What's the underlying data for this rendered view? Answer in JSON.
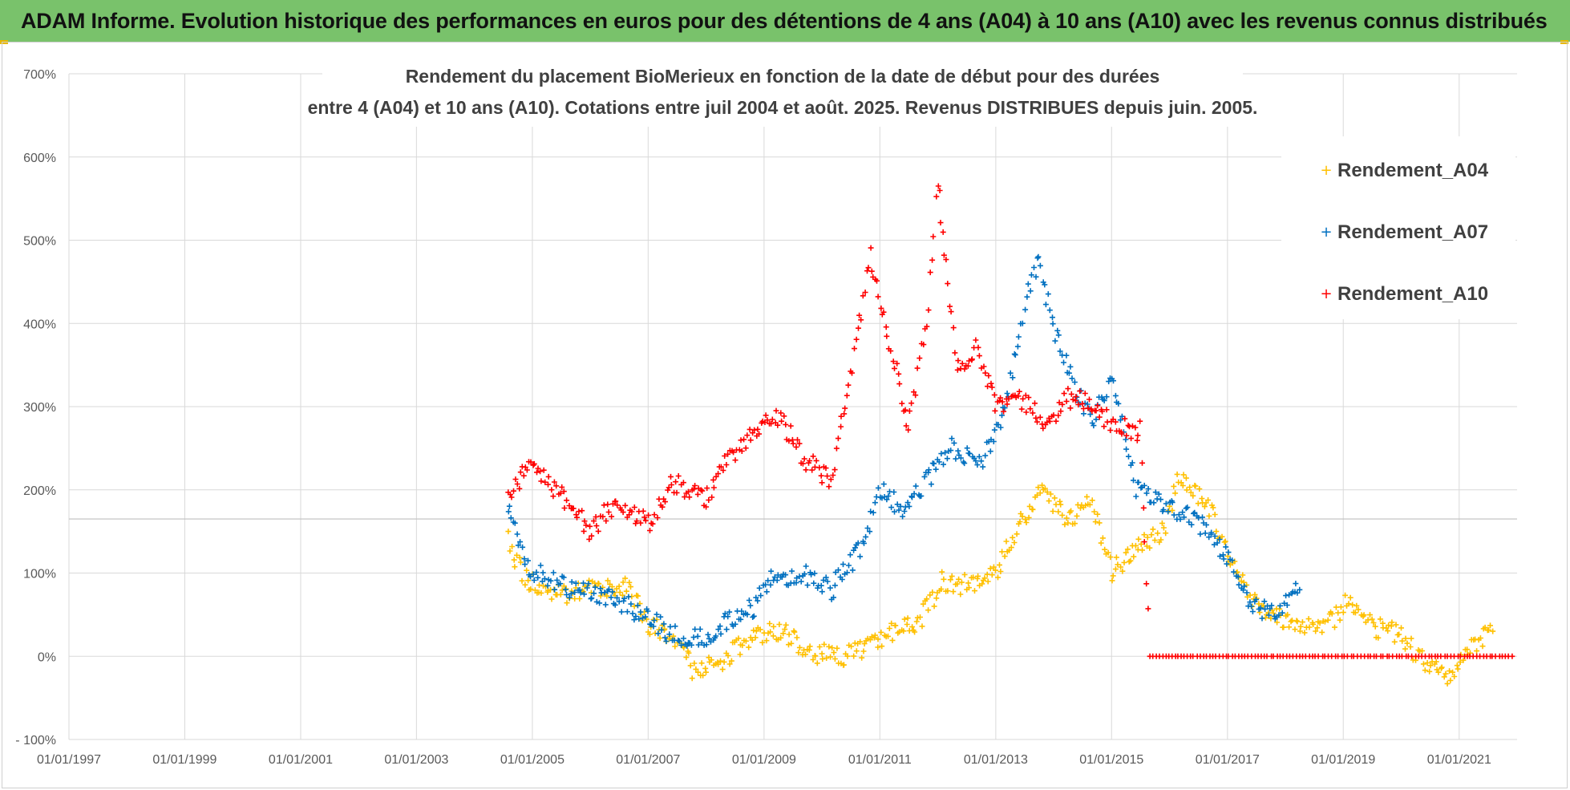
{
  "banner": {
    "title": "ADAM Informe. Evolution historique des performances en euros pour des détentions de 4 ans (A04) à 10 ans (A10) avec les revenus connus distribués",
    "background": "#79c26b"
  },
  "chart_data": {
    "type": "scatter",
    "title_line1": "Rendement du placement BioMerieux en fonction de la date de début pour des durées",
    "title_line2": "entre 4 (A04) et 10 ans (A10). Cotations entre juil 2004 et août. 2025. Revenus DISTRIBUES depuis juin. 2005.",
    "xlabel": "",
    "ylabel": "",
    "x_tick_labels": [
      "01/01/1997",
      "01/01/1999",
      "01/01/2001",
      "01/01/2003",
      "01/01/2005",
      "01/01/2007",
      "01/01/2009",
      "01/01/2011",
      "01/01/2013",
      "01/01/2015",
      "01/01/2017",
      "01/01/2019",
      "01/01/2021"
    ],
    "x_range": [
      "1997-01-01",
      "2022-01-01"
    ],
    "y_tick_labels": [
      "- 100%",
      "0%",
      "100%",
      "200%",
      "300%",
      "400%",
      "500%",
      "600%",
      "700%"
    ],
    "ylim": [
      -100,
      700
    ],
    "grid": true,
    "legend_position": "top-right",
    "marker": "+",
    "series": [
      {
        "name": "Rendement_A04",
        "color": "#ffc000",
        "points": [
          [
            "2004-08-01",
            145
          ],
          [
            "2004-11-01",
            95
          ],
          [
            "2005-03-01",
            80
          ],
          [
            "2005-09-01",
            72
          ],
          [
            "2006-03-01",
            85
          ],
          [
            "2006-09-01",
            82
          ],
          [
            "2007-01-01",
            40
          ],
          [
            "2007-06-01",
            20
          ],
          [
            "2007-11-01",
            -20
          ],
          [
            "2008-04-01",
            -5
          ],
          [
            "2008-09-01",
            15
          ],
          [
            "2009-01-01",
            30
          ],
          [
            "2009-06-01",
            25
          ],
          [
            "2009-11-01",
            5
          ],
          [
            "2010-05-01",
            0
          ],
          [
            "2010-11-01",
            10
          ],
          [
            "2011-03-01",
            30
          ],
          [
            "2011-09-01",
            40
          ],
          [
            "2012-02-01",
            90
          ],
          [
            "2012-08-01",
            85
          ],
          [
            "2013-01-01",
            100
          ],
          [
            "2013-06-01",
            160
          ],
          [
            "2013-11-01",
            200
          ],
          [
            "2014-04-01",
            160
          ],
          [
            "2014-09-01",
            185
          ],
          [
            "2015-01-01",
            100
          ],
          [
            "2015-06-01",
            130
          ],
          [
            "2015-12-01",
            150
          ],
          [
            "2016-03-01",
            220
          ],
          [
            "2016-09-01",
            180
          ],
          [
            "2017-01-01",
            130
          ],
          [
            "2017-06-01",
            70
          ],
          [
            "2017-11-01",
            50
          ],
          [
            "2018-04-01",
            40
          ],
          [
            "2018-09-01",
            30
          ],
          [
            "2019-02-01",
            70
          ],
          [
            "2019-08-01",
            35
          ],
          [
            "2020-01-01",
            25
          ],
          [
            "2020-06-01",
            -10
          ],
          [
            "2020-11-01",
            -25
          ],
          [
            "2021-04-01",
            15
          ],
          [
            "2021-08-01",
            30
          ]
        ]
      },
      {
        "name": "Rendement_A07",
        "color": "#0070c0",
        "points": [
          [
            "2004-08-01",
            180
          ],
          [
            "2004-12-01",
            110
          ],
          [
            "2005-06-01",
            85
          ],
          [
            "2006-01-01",
            80
          ],
          [
            "2006-06-01",
            70
          ],
          [
            "2007-01-01",
            45
          ],
          [
            "2007-06-01",
            25
          ],
          [
            "2008-01-01",
            20
          ],
          [
            "2008-06-01",
            45
          ],
          [
            "2008-11-01",
            60
          ],
          [
            "2009-03-01",
            95
          ],
          [
            "2009-09-01",
            100
          ],
          [
            "2010-03-01",
            80
          ],
          [
            "2010-09-01",
            130
          ],
          [
            "2011-01-01",
            200
          ],
          [
            "2011-06-01",
            175
          ],
          [
            "2011-12-01",
            220
          ],
          [
            "2012-04-01",
            250
          ],
          [
            "2012-10-01",
            230
          ],
          [
            "2013-03-01",
            300
          ],
          [
            "2013-07-01",
            420
          ],
          [
            "2013-10-01",
            480
          ],
          [
            "2014-01-01",
            390
          ],
          [
            "2014-05-01",
            330
          ],
          [
            "2014-09-01",
            280
          ],
          [
            "2015-01-01",
            340
          ],
          [
            "2015-06-01",
            200
          ],
          [
            "2016-01-01",
            180
          ],
          [
            "2016-07-01",
            160
          ],
          [
            "2017-01-01",
            120
          ],
          [
            "2017-06-01",
            60
          ],
          [
            "2017-11-01",
            50
          ],
          [
            "2018-04-01",
            80
          ]
        ]
      },
      {
        "name": "Rendement_A10",
        "color": "#ff0000",
        "points": [
          [
            "2004-08-01",
            190
          ],
          [
            "2004-12-01",
            230
          ],
          [
            "2005-06-01",
            200
          ],
          [
            "2006-01-01",
            150
          ],
          [
            "2006-06-01",
            185
          ],
          [
            "2007-01-01",
            160
          ],
          [
            "2007-06-01",
            210
          ],
          [
            "2008-01-01",
            190
          ],
          [
            "2008-06-01",
            240
          ],
          [
            "2008-11-01",
            270
          ],
          [
            "2009-04-01",
            290
          ],
          [
            "2009-09-01",
            240
          ],
          [
            "2010-03-01",
            210
          ],
          [
            "2010-07-01",
            340
          ],
          [
            "2010-11-01",
            480
          ],
          [
            "2011-03-01",
            380
          ],
          [
            "2011-07-01",
            270
          ],
          [
            "2011-11-01",
            420
          ],
          [
            "2012-01-01",
            570
          ],
          [
            "2012-05-01",
            350
          ],
          [
            "2012-09-01",
            370
          ],
          [
            "2013-01-01",
            300
          ],
          [
            "2013-06-01",
            310
          ],
          [
            "2013-12-01",
            280
          ],
          [
            "2014-04-01",
            310
          ],
          [
            "2014-08-01",
            310
          ],
          [
            "2015-01-01",
            280
          ],
          [
            "2015-07-01",
            270
          ],
          [
            "2015-09-01",
            0
          ],
          [
            "2016-06-01",
            0
          ],
          [
            "2017-06-01",
            0
          ],
          [
            "2018-06-01",
            0
          ],
          [
            "2019-06-01",
            0
          ],
          [
            "2020-06-01",
            0
          ],
          [
            "2021-06-01",
            0
          ],
          [
            "2021-12-01",
            0
          ]
        ]
      }
    ]
  }
}
